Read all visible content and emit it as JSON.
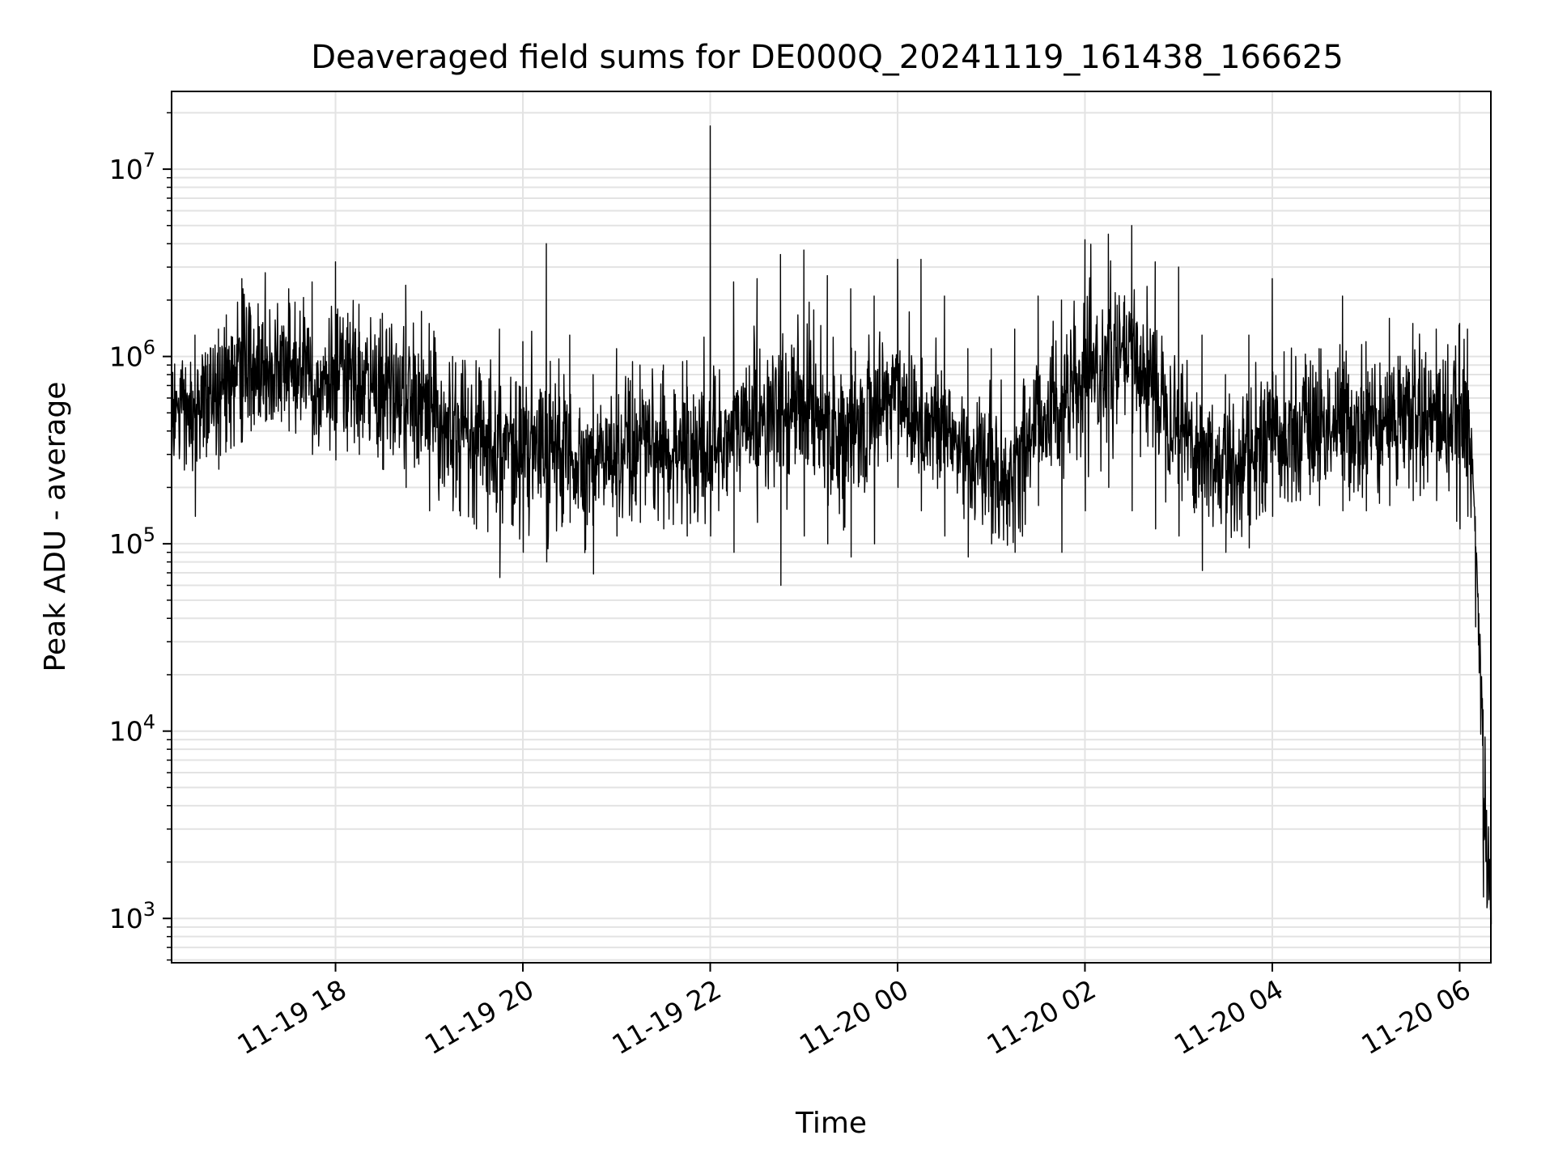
{
  "chart_data": {
    "type": "line",
    "title": "Deaveraged field sums for DE000Q_20241119_161438_166625",
    "xlabel": "Time",
    "ylabel": "Peak ADU - average",
    "y_scale": "log",
    "ylim": [
      580,
      26000000
    ],
    "xlim": [
      "2024-11-19 16:15",
      "2024-11-20 06:20"
    ],
    "x_ticks": [
      "11-19 18",
      "11-19 20",
      "11-19 22",
      "11-20 00",
      "11-20 02",
      "11-20 04",
      "11-20 06"
    ],
    "y_ticks": [
      {
        "value": 1000,
        "base": "10",
        "exp": "3"
      },
      {
        "value": 10000,
        "base": "10",
        "exp": "4"
      },
      {
        "value": 100000,
        "base": "10",
        "exp": "5"
      },
      {
        "value": 1000000,
        "base": "10",
        "exp": "6"
      },
      {
        "value": 10000000,
        "base": "10",
        "exp": "7"
      }
    ],
    "grid": true,
    "line_color": "#000000",
    "grid_color": "#e3e3e3",
    "series": [
      {
        "x": [
          "2024-11-19 16:15",
          "2024-11-19 16:30",
          "2024-11-19 16:45",
          "2024-11-19 17:00",
          "2024-11-19 17:15",
          "2024-11-19 17:30",
          "2024-11-19 17:45",
          "2024-11-19 18:00",
          "2024-11-19 18:15",
          "2024-11-19 18:30",
          "2024-11-19 18:45",
          "2024-11-19 19:00",
          "2024-11-19 19:15",
          "2024-11-19 19:30",
          "2024-11-19 19:45",
          "2024-11-19 20:00",
          "2024-11-19 20:15",
          "2024-11-19 20:30",
          "2024-11-19 20:45",
          "2024-11-19 21:00",
          "2024-11-19 21:15",
          "2024-11-19 21:30",
          "2024-11-19 21:45",
          "2024-11-19 22:00",
          "2024-11-19 22:15",
          "2024-11-19 22:30",
          "2024-11-19 22:45",
          "2024-11-19 23:00",
          "2024-11-19 23:15",
          "2024-11-19 23:30",
          "2024-11-19 23:45",
          "2024-11-20 00:00",
          "2024-11-20 00:15",
          "2024-11-20 00:30",
          "2024-11-20 00:45",
          "2024-11-20 01:00",
          "2024-11-20 01:15",
          "2024-11-20 01:30",
          "2024-11-20 01:45",
          "2024-11-20 02:00",
          "2024-11-20 02:15",
          "2024-11-20 02:30",
          "2024-11-20 02:45",
          "2024-11-20 03:00",
          "2024-11-20 03:15",
          "2024-11-20 03:30",
          "2024-11-20 03:45",
          "2024-11-20 04:00",
          "2024-11-20 04:15",
          "2024-11-20 04:30",
          "2024-11-20 04:45",
          "2024-11-20 05:00",
          "2024-11-20 05:15",
          "2024-11-20 05:30",
          "2024-11-20 05:45",
          "2024-11-20 06:00",
          "2024-11-20 06:05",
          "2024-11-20 06:10",
          "2024-11-20 06:15",
          "2024-11-20 06:20"
        ],
        "typical": [
          500000,
          550000,
          650000,
          800000,
          900000,
          850000,
          800000,
          750000,
          700000,
          650000,
          600000,
          500000,
          450000,
          400000,
          350000,
          300000,
          320000,
          300000,
          280000,
          300000,
          280000,
          290000,
          300000,
          330000,
          400000,
          500000,
          450000,
          600000,
          450000,
          350000,
          500000,
          700000,
          450000,
          400000,
          300000,
          250000,
          220000,
          500000,
          550000,
          700000,
          900000,
          1000000,
          700000,
          450000,
          300000,
          250000,
          300000,
          350000,
          400000,
          420000,
          450000,
          430000,
          450000,
          480000,
          460000,
          450000,
          400000,
          300000,
          5000,
          1000
        ],
        "low": [
          300000,
          140000,
          250000,
          350000,
          450000,
          400000,
          300000,
          280000,
          300000,
          250000,
          200000,
          150000,
          150000,
          120000,
          66000,
          90000,
          80000,
          130000,
          69000,
          110000,
          130000,
          120000,
          110000,
          110000,
          90000,
          130000,
          60000,
          110000,
          100000,
          85000,
          100000,
          200000,
          150000,
          110000,
          85000,
          100000,
          90000,
          160000,
          90000,
          150000,
          200000,
          150000,
          120000,
          110000,
          72000,
          90000,
          95000,
          140000,
          170000,
          160000,
          150000,
          150000,
          160000,
          170000,
          170000,
          120000,
          140000,
          36000,
          1300,
          930
        ],
        "high": [
          900000,
          1300000,
          1400000,
          2600000,
          2800000,
          2300000,
          2500000,
          3200000,
          1900000,
          1700000,
          2400000,
          1500000,
          1000000,
          950000,
          1400000,
          1200000,
          4000000,
          1300000,
          800000,
          1100000,
          900000,
          900000,
          950000,
          17000000,
          2500000,
          2600000,
          3500000,
          3700000,
          2700000,
          2300000,
          2100000,
          3300000,
          3300000,
          2100000,
          1100000,
          1100000,
          1400000,
          2100000,
          2000000,
          4200000,
          4500000,
          5000000,
          3200000,
          3000000,
          1300000,
          800000,
          1300000,
          2600000,
          1000000,
          1100000,
          2100000,
          1200000,
          1600000,
          1500000,
          1400000,
          1500000,
          1400000,
          140000,
          13000,
          3500
        ]
      }
    ]
  }
}
